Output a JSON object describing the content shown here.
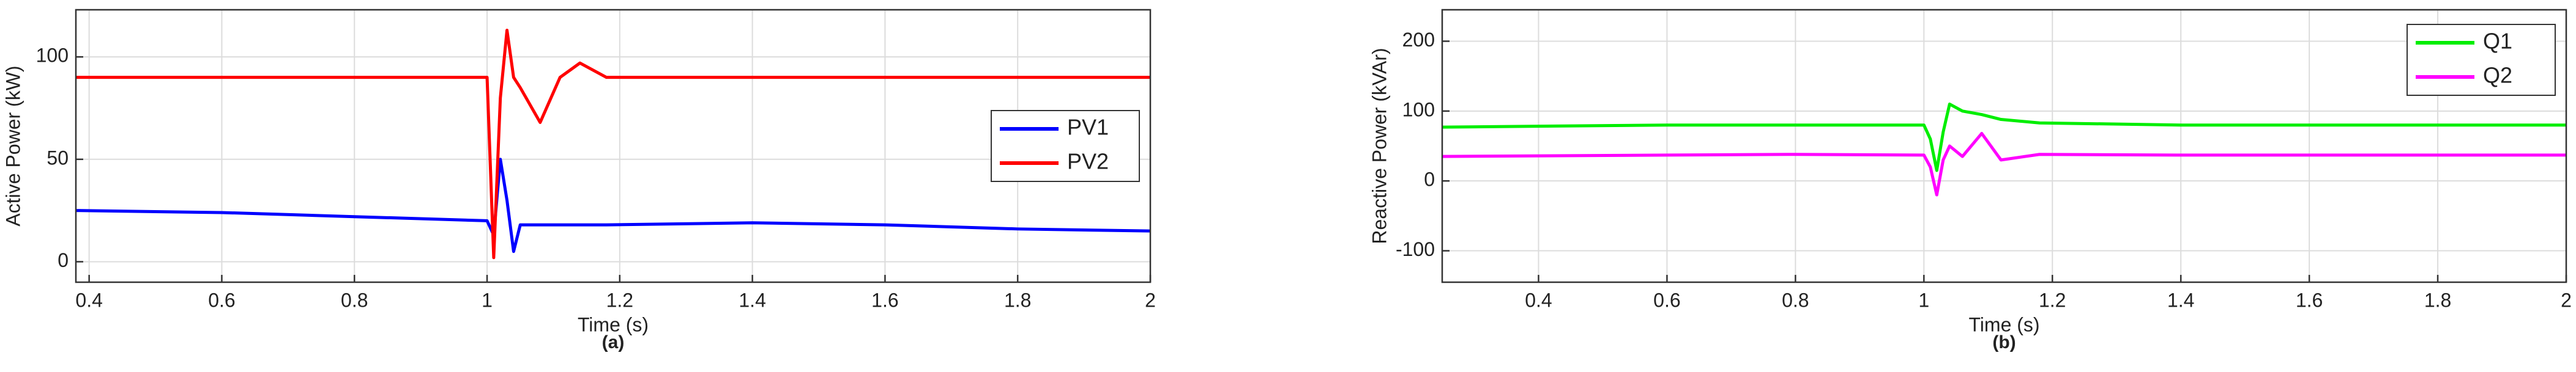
{
  "chart_data": [
    {
      "type": "line",
      "xlabel": "Time (s)",
      "ylabel": "Active Power (kW)",
      "caption": "(a)",
      "x": [
        0.38,
        0.6,
        0.8,
        1.0,
        1.01,
        1.02,
        1.03,
        1.04,
        1.05,
        1.08,
        1.11,
        1.14,
        1.18,
        1.4,
        1.6,
        1.8,
        2.0
      ],
      "series": [
        {
          "name": "PV1",
          "color": "#0000ff",
          "values": [
            25,
            24,
            22,
            20,
            13,
            50,
            30,
            5,
            18,
            18,
            18,
            18,
            18,
            19,
            18,
            16,
            15
          ]
        },
        {
          "name": "PV2",
          "color": "#ff0000",
          "values": [
            90,
            90,
            90,
            90,
            2,
            80,
            113,
            90,
            85,
            68,
            90,
            97,
            90,
            90,
            90,
            90,
            90
          ]
        }
      ],
      "xlim": [
        0.38,
        2
      ],
      "xticks": [
        0.4,
        0.6,
        0.8,
        1,
        1.2,
        1.4,
        1.6,
        1.8,
        2
      ],
      "ylim": [
        -10,
        123
      ],
      "yticks": [
        0,
        50,
        100
      ],
      "grid": true,
      "legend": "center right"
    },
    {
      "type": "line",
      "xlabel": "Time (s)",
      "ylabel": "Reactive Power (kVAr)",
      "caption": "(b)",
      "x": [
        0.25,
        0.6,
        0.8,
        1.0,
        1.01,
        1.02,
        1.03,
        1.04,
        1.06,
        1.09,
        1.12,
        1.18,
        1.4,
        1.6,
        1.8,
        2.0
      ],
      "series": [
        {
          "name": "Q1",
          "color": "#00ee00",
          "values": [
            77,
            80,
            80,
            80,
            60,
            15,
            70,
            110,
            100,
            95,
            88,
            83,
            80,
            80,
            80,
            80
          ]
        },
        {
          "name": "Q2",
          "color": "#ff00ff",
          "values": [
            35,
            37,
            38,
            37,
            20,
            -20,
            30,
            50,
            35,
            68,
            30,
            38,
            37,
            37,
            37,
            37
          ]
        }
      ],
      "xlim": [
        0.25,
        2
      ],
      "xticks": [
        0.4,
        0.6,
        0.8,
        1,
        1.2,
        1.4,
        1.6,
        1.8,
        2
      ],
      "ylim": [
        -145,
        245
      ],
      "yticks": [
        -100,
        0,
        100,
        200
      ],
      "grid": true,
      "legend": "upper right"
    }
  ]
}
